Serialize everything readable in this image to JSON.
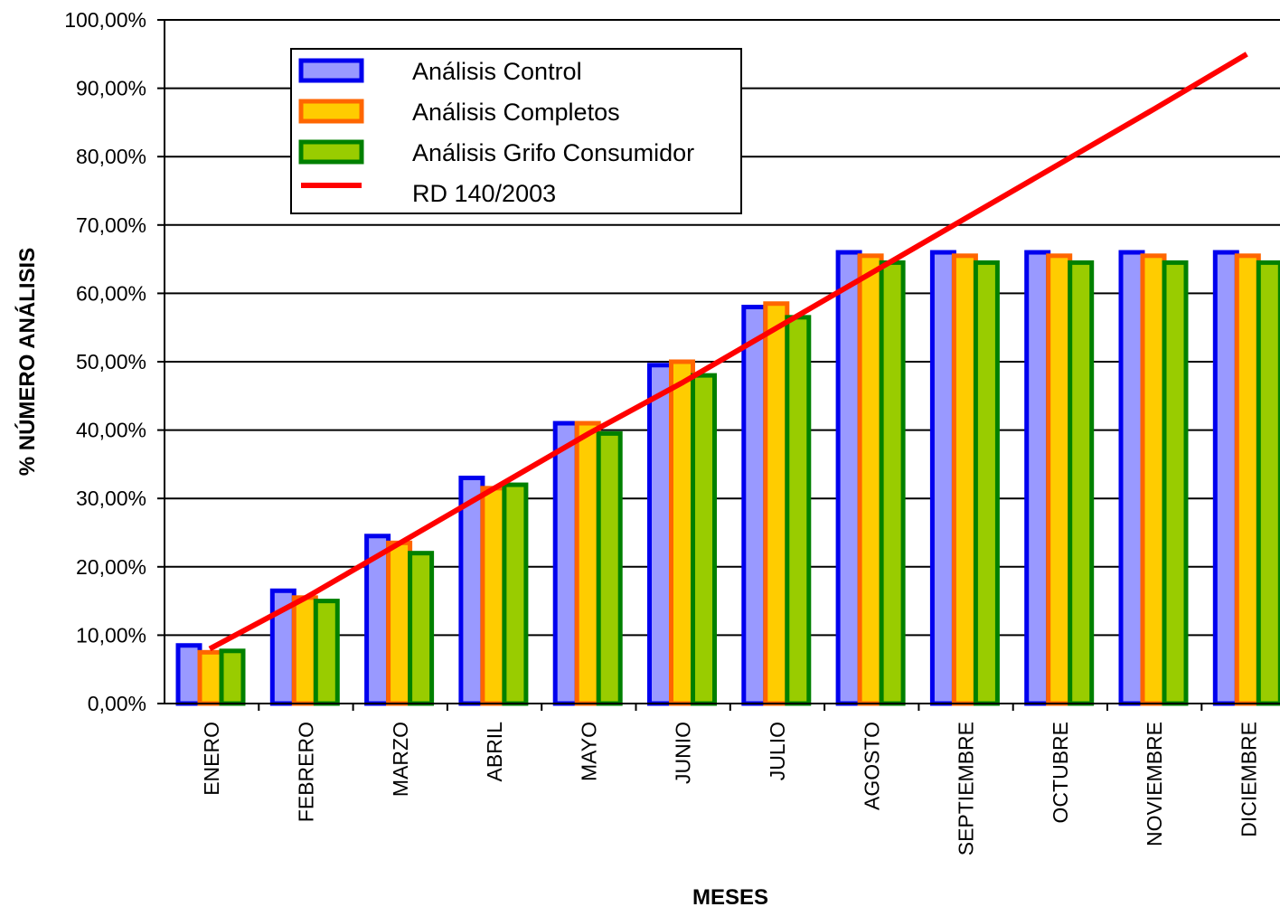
{
  "chart_data": {
    "type": "bar",
    "title": "",
    "xlabel": "MESES",
    "ylabel": "% NÚMERO ANÁLISIS",
    "ylim": [
      0,
      100
    ],
    "yticks": [
      "0,00%",
      "10,00%",
      "20,00%",
      "30,00%",
      "40,00%",
      "50,00%",
      "60,00%",
      "70,00%",
      "80,00%",
      "90,00%",
      "100,00%"
    ],
    "categories": [
      "ENERO",
      "FEBRERO",
      "MARZO",
      "ABRIL",
      "MAYO",
      "JUNIO",
      "JULIO",
      "AGOSTO",
      "SEPTIEMBRE",
      "OCTUBRE",
      "NOVIEMBRE",
      "DICIEMBRE"
    ],
    "grid": true,
    "legend_position": "top-left",
    "series": [
      {
        "name": "Análisis Control",
        "kind": "bar",
        "fill": "#9999ff",
        "stroke": "#0000ee",
        "values": [
          8.5,
          16.5,
          24.5,
          33,
          41,
          49.5,
          58,
          66,
          66,
          66,
          66,
          66
        ]
      },
      {
        "name": "Análisis Completos",
        "kind": "bar",
        "fill": "#ffcc00",
        "stroke": "#ff6600",
        "values": [
          7.5,
          15.5,
          23.5,
          31.5,
          41,
          50,
          58.5,
          65.5,
          65.5,
          65.5,
          65.5,
          65.5
        ]
      },
      {
        "name": "Análisis Grifo Consumidor",
        "kind": "bar",
        "fill": "#99cc00",
        "stroke": "#008000",
        "values": [
          7.7,
          15,
          22,
          32,
          39.5,
          48,
          56.5,
          64.5,
          64.5,
          64.5,
          64.5,
          64.5
        ]
      },
      {
        "name": "RD 140/2003",
        "kind": "line",
        "stroke": "#ff0000",
        "values": [
          8,
          15.5,
          23.5,
          31.5,
          39.5,
          47,
          55,
          63,
          71,
          79,
          87,
          95
        ]
      }
    ]
  }
}
